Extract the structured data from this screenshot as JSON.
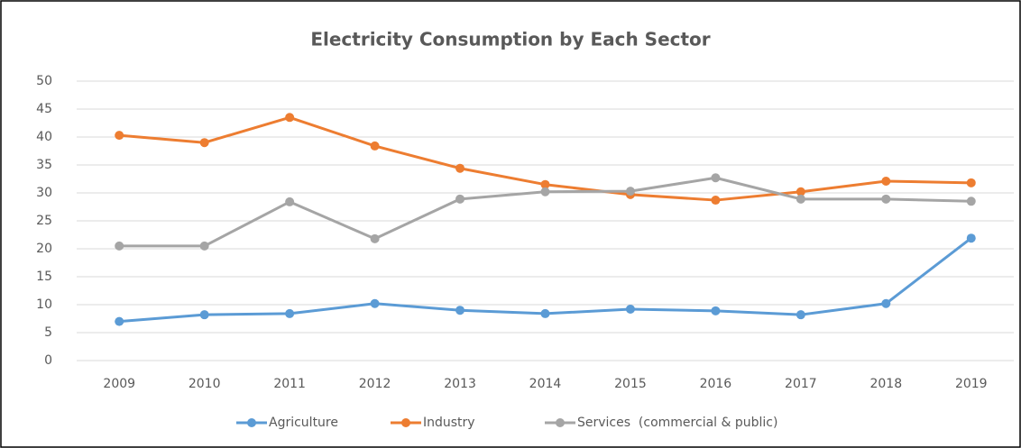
{
  "chart_data": {
    "type": "line",
    "title": "Electricity Consumption by Each Sector",
    "categories": [
      "2009",
      "2010",
      "2011",
      "2012",
      "2013",
      "2014",
      "2015",
      "2016",
      "2017",
      "2018",
      "2019"
    ],
    "series": [
      {
        "name": "Agriculture",
        "color": "#5b9bd5",
        "values": [
          7,
          8.2,
          8.4,
          10.2,
          9,
          8.4,
          9.2,
          8.9,
          8.2,
          10.2,
          21.9
        ]
      },
      {
        "name": "Industry",
        "color": "#ed7d31",
        "values": [
          40.3,
          39,
          43.5,
          38.4,
          34.4,
          31.5,
          29.7,
          28.7,
          30.2,
          32.1,
          31.8
        ]
      },
      {
        "name": "Services  (commercial & public)",
        "color": "#a5a5a5",
        "values": [
          20.5,
          20.5,
          28.4,
          21.8,
          28.9,
          30.2,
          30.3,
          32.7,
          28.9,
          28.9,
          28.5
        ]
      }
    ],
    "ylim": [
      0,
      50
    ],
    "yticks": [
      0,
      5,
      10,
      15,
      20,
      25,
      30,
      35,
      40,
      45,
      50
    ],
    "grid": true,
    "legend": "bottom"
  }
}
